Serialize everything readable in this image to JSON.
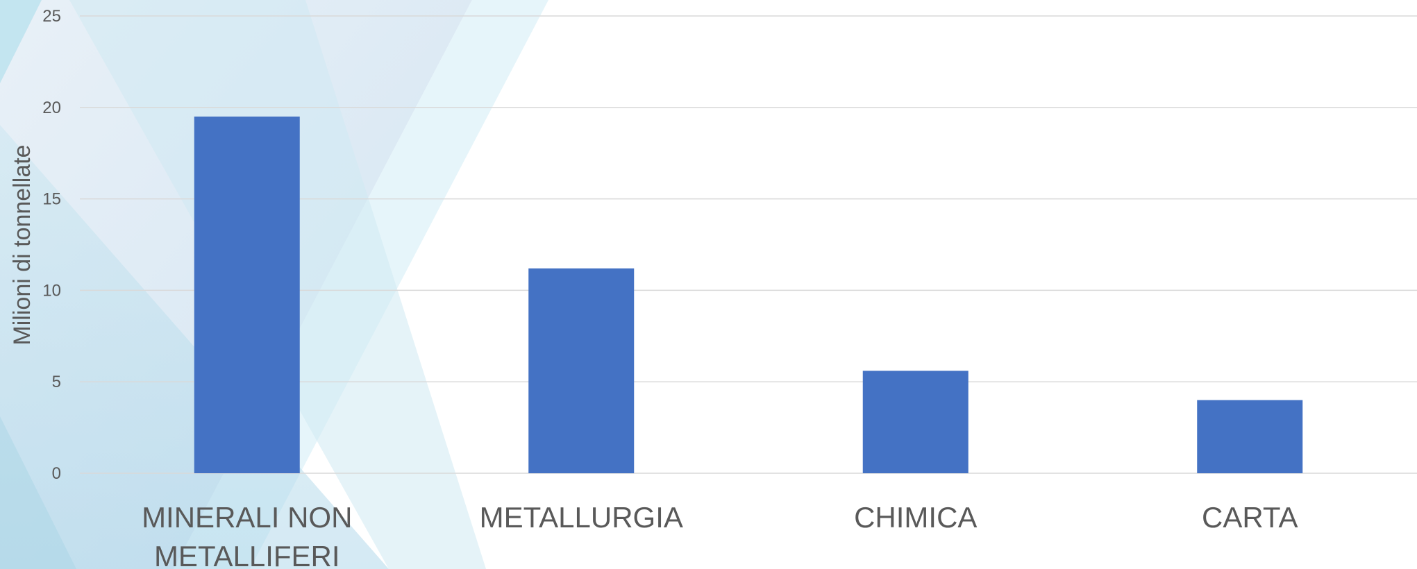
{
  "chart_data": {
    "type": "bar",
    "title": "",
    "xlabel": "",
    "ylabel": "Milioni di tonnellate",
    "ylim": [
      0,
      25
    ],
    "yticks": [
      0,
      5,
      10,
      15,
      20,
      25
    ],
    "grid": true,
    "categories": [
      [
        "MINERALI NON",
        "METALLIFERI"
      ],
      [
        "METALLURGIA"
      ],
      [
        "CHIMICA"
      ],
      [
        "CARTA"
      ]
    ],
    "values": [
      19.5,
      11.2,
      5.6,
      4.0
    ],
    "colors": {
      "bar": "#4472C4",
      "grid": "#D9D9D9",
      "text": "#595959"
    }
  }
}
